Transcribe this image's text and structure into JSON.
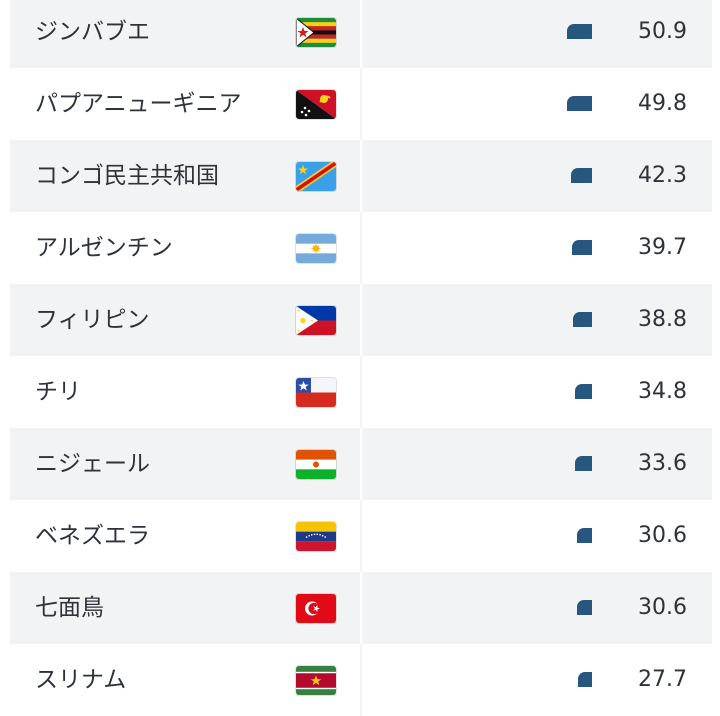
{
  "chart_data": {
    "type": "bar",
    "rows": [
      {
        "name": "ジンバブエ",
        "flag": "zimbabwe-flag-icon",
        "value": 50.9,
        "label": "50.9"
      },
      {
        "name": "パプアニューギニア",
        "flag": "papua-new-guinea-flag-icon",
        "value": 49.8,
        "label": "49.8"
      },
      {
        "name": "コンゴ民主共和国",
        "flag": "dr-congo-flag-icon",
        "value": 42.3,
        "label": "42.3"
      },
      {
        "name": "アルゼンチン",
        "flag": "argentina-flag-icon",
        "value": 39.7,
        "label": "39.7"
      },
      {
        "name": "フィリピン",
        "flag": "philippines-flag-icon",
        "value": 38.8,
        "label": "38.8"
      },
      {
        "name": "チリ",
        "flag": "chile-flag-icon",
        "value": 34.8,
        "label": "34.8"
      },
      {
        "name": "ニジェール",
        "flag": "niger-flag-icon",
        "value": 33.6,
        "label": "33.6"
      },
      {
        "name": "ベネズエラ",
        "flag": "venezuela-flag-icon",
        "value": 30.6,
        "label": "30.6"
      },
      {
        "name": "七面鳥",
        "flag": "turkey-flag-icon",
        "value": 30.6,
        "label": "30.6"
      },
      {
        "name": "スリナム",
        "flag": "suriname-flag-icon",
        "value": 27.7,
        "label": "27.7"
      }
    ]
  },
  "colors": {
    "bar": "#27567f",
    "row_shade": "#f1f3f5",
    "text": "#2d3339"
  }
}
